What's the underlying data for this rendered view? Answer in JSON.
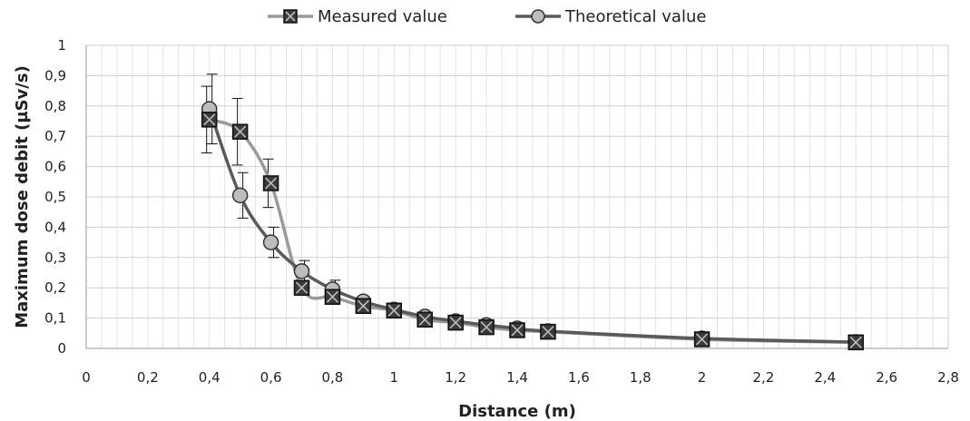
{
  "chart_data": {
    "type": "line",
    "title": "",
    "xlabel": "Distance (m)",
    "ylabel": "Maximum dose debit (µSv/s)",
    "xlim": [
      0,
      2.8
    ],
    "ylim": [
      0,
      1
    ],
    "xticks": [
      0,
      0.2,
      0.4,
      0.6,
      0.8,
      1,
      1.2,
      1.4,
      1.6,
      1.8,
      2,
      2.2,
      2.4,
      2.6,
      2.8
    ],
    "xtick_labels": [
      "0",
      "0,2",
      "0,4",
      "0,6",
      "0,8",
      "1",
      "1,2",
      "1,4",
      "1,6",
      "1,8",
      "2",
      "2,2",
      "2,4",
      "2,6",
      "2,8"
    ],
    "yticks": [
      0,
      0.1,
      0.2,
      0.3,
      0.4,
      0.5,
      0.6,
      0.7,
      0.8,
      0.9,
      1
    ],
    "ytick_labels": [
      "0",
      "0,1",
      "0,2",
      "0,3",
      "0,4",
      "0,5",
      "0,6",
      "0,7",
      "0,8",
      "0,9",
      "1"
    ],
    "grid": true,
    "legend_position": "top-center",
    "series": [
      {
        "name": "Measured value",
        "color": "#9a9a9a",
        "marker": "square-x",
        "x": [
          0.4,
          0.5,
          0.6,
          0.7,
          0.8,
          0.9,
          1.0,
          1.1,
          1.2,
          1.3,
          1.4,
          1.5,
          2.0,
          2.5
        ],
        "y": [
          0.755,
          0.715,
          0.545,
          0.2,
          0.17,
          0.14,
          0.125,
          0.095,
          0.085,
          0.07,
          0.06,
          0.055,
          0.03,
          0.02
        ],
        "error": [
          0.11,
          0.11,
          0.08,
          null,
          null,
          null,
          null,
          null,
          null,
          null,
          null,
          null,
          null,
          null
        ]
      },
      {
        "name": "Theoretical value",
        "color": "#5a5a5a",
        "marker": "circle",
        "x": [
          0.4,
          0.5,
          0.6,
          0.7,
          0.8,
          0.9,
          1.0,
          1.1,
          1.2,
          1.3,
          1.4,
          1.5,
          2.0,
          2.5
        ],
        "y": [
          0.79,
          0.505,
          0.35,
          0.255,
          0.195,
          0.155,
          0.128,
          0.105,
          0.09,
          0.077,
          0.066,
          0.057,
          0.033,
          0.021
        ],
        "error": [
          0.115,
          0.075,
          0.05,
          0.035,
          0.03,
          null,
          null,
          null,
          null,
          null,
          null,
          null,
          null,
          null
        ]
      }
    ]
  }
}
